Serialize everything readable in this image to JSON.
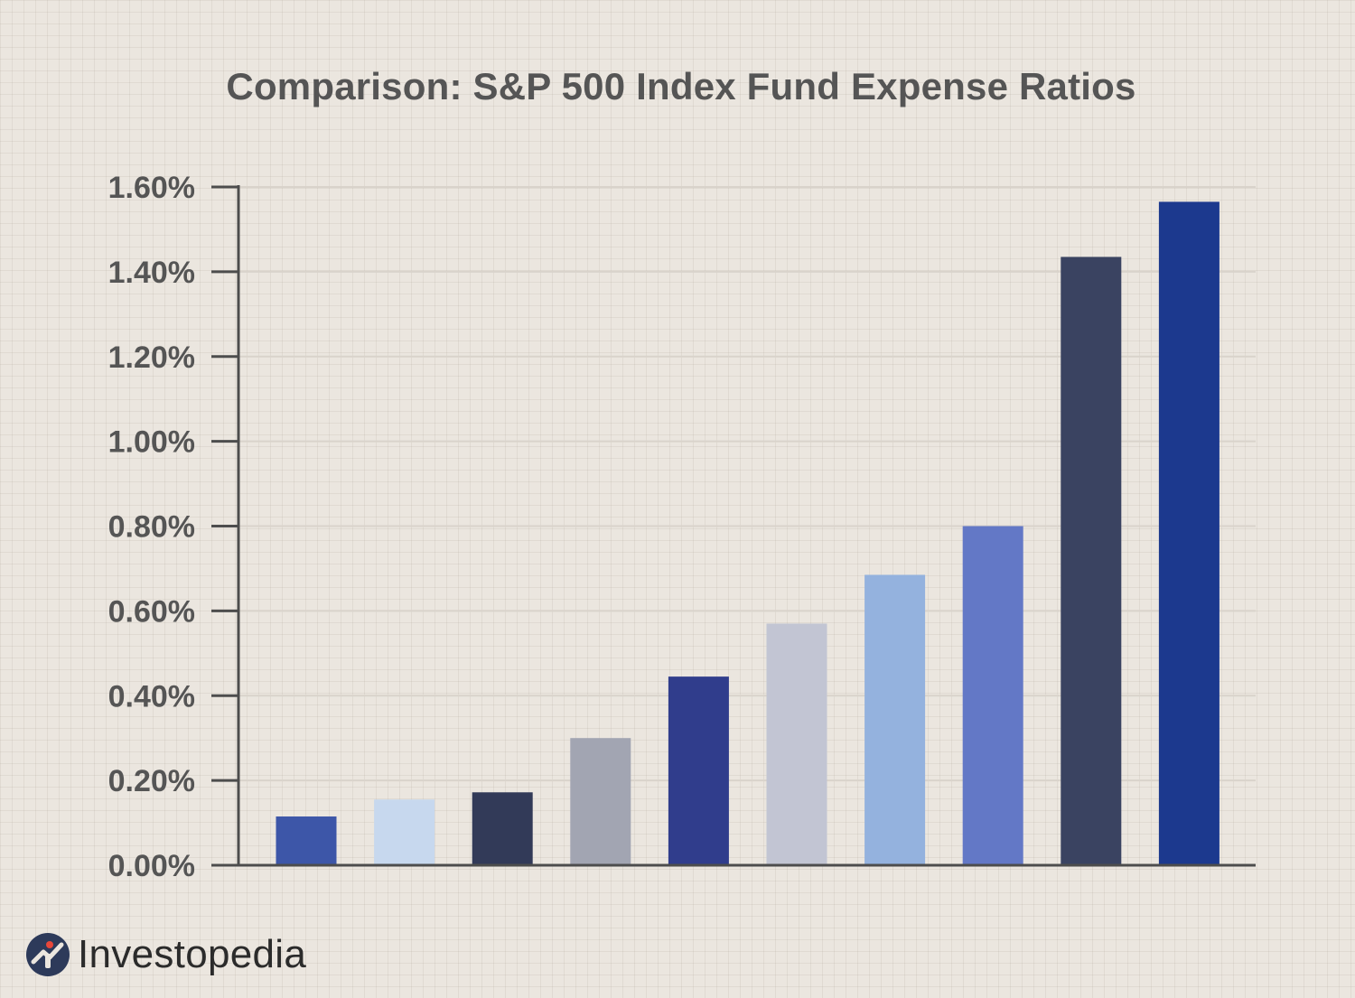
{
  "chart_data": {
    "type": "bar",
    "title": "Comparison: S&P 500 Index Fund Expense Ratios",
    "xlabel": "",
    "ylabel": "",
    "ylim": [
      0,
      1.6
    ],
    "yticks": [
      "0.00%",
      "0.20%",
      "0.40%",
      "0.60%",
      "0.80%",
      "1.00%",
      "1.20%",
      "1.40%",
      "1.60%"
    ],
    "ytick_values": [
      0,
      0.2,
      0.4,
      0.6,
      0.8,
      1.0,
      1.2,
      1.4,
      1.6
    ],
    "grid": true,
    "categories": [
      "",
      "",
      "",
      "",
      "",
      "",
      "",
      "",
      "",
      ""
    ],
    "values": [
      0.115,
      0.155,
      0.172,
      0.3,
      0.445,
      0.57,
      0.685,
      0.8,
      1.435,
      1.565
    ],
    "colors": [
      "#3d56a8",
      "#c7d8ee",
      "#323a58",
      "#a2a5b2",
      "#303d8c",
      "#c2c5d3",
      "#94b2de",
      "#6378c6",
      "#3a4361",
      "#1c398e"
    ]
  },
  "brand": {
    "name": "Investopedia",
    "mark_color": "#2d3a5a",
    "accent_color": "#e8473a"
  },
  "colors": {
    "axis": "#4d4d4d",
    "grid": "#d9d3cb",
    "tick_text": "#555555"
  }
}
